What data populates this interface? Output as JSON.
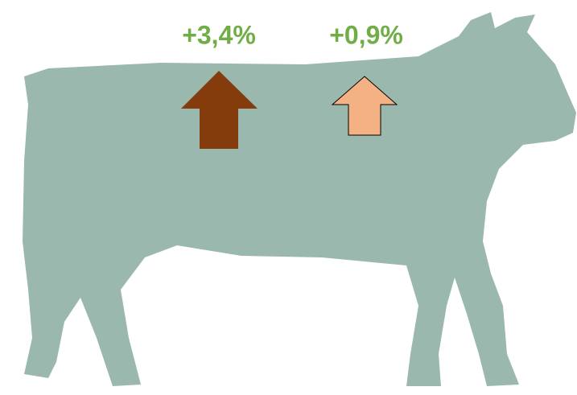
{
  "indicators": [
    {
      "label": "+3,4%"
    },
    {
      "label": "+0,9%"
    }
  ]
}
